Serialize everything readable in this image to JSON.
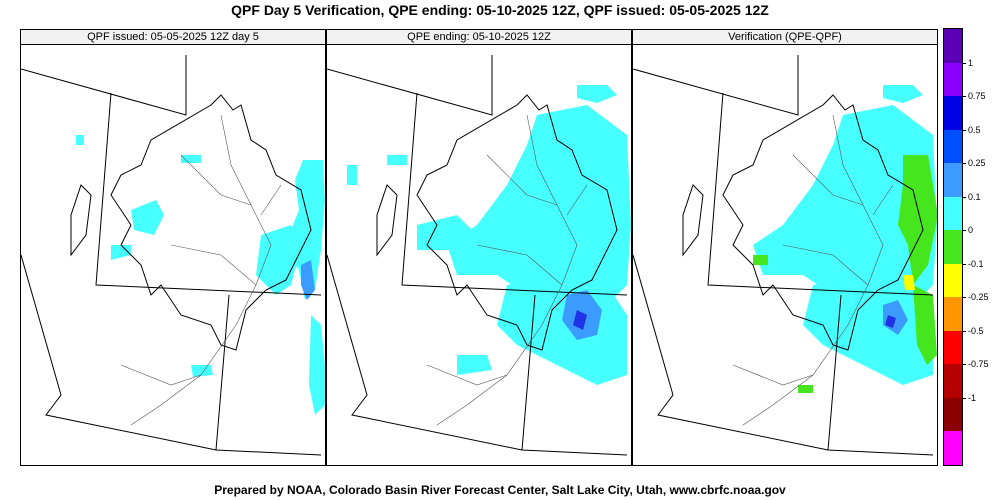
{
  "title": "QPF Day 5 Verification, QPE ending: 05-10-2025 12Z, QPF issued: 05-05-2025 12Z",
  "footer": "Prepared by NOAA, Colorado Basin River Forecast Center, Salt Lake City, Utah, www.cbrfc.noaa.gov",
  "panels": [
    {
      "title": "QPF issued: 05-05-2025 12Z day 5"
    },
    {
      "title": "QPE ending: 05-10-2025 12Z"
    },
    {
      "title": "Verification (QPE-QPF)"
    }
  ],
  "legend": {
    "labels": [
      "1",
      "0.75",
      "0.5",
      "0.25",
      "0.1",
      "0",
      "-0.1",
      "-0.25",
      "-0.5",
      "-0.75",
      "-1"
    ],
    "colors": [
      "#5a00b4",
      "#8c00ff",
      "#0000e6",
      "#0050ff",
      "#3c9bff",
      "#46ffff",
      "#46e61e",
      "#ffff00",
      "#ff9600",
      "#ff0000",
      "#b40000",
      "#8c0000",
      "#ff00ff"
    ]
  },
  "map_colors": {
    "precip_light": "#46ffff",
    "precip_moderate": "#3c9bff",
    "precip_heavy": "#1e32e6",
    "under_forecast_small": "#46e61e",
    "under_forecast_mid": "#ffff00",
    "boundary": "#000000",
    "river": "#555555"
  }
}
